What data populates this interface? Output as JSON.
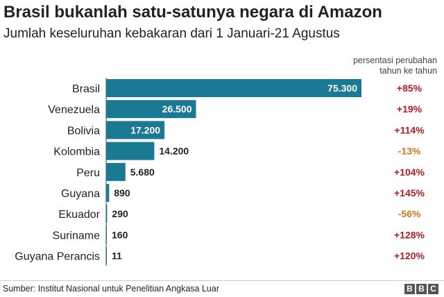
{
  "header": {
    "title": "Brasil bukanlah satu-satunya negara di Amazon",
    "subtitle": "Jumlah keseluruhan kebakaran dari 1 Januari-21 Agustus",
    "pct_header_line1": "persentasi perubahan",
    "pct_header_line2": "tahun ke tahun"
  },
  "chart_data": {
    "type": "bar",
    "orientation": "horizontal",
    "categories": [
      "Brasil",
      "Venezuela",
      "Bolivia",
      "Kolombia",
      "Peru",
      "Guyana",
      "Ekuador",
      "Suriname",
      "Guyana Perancis"
    ],
    "values": [
      75300,
      26500,
      17200,
      14200,
      5680,
      890,
      290,
      160,
      11
    ],
    "value_labels": [
      "75.300",
      "26.500",
      "17.200",
      "14.200",
      "5.680",
      "890",
      "290",
      "160",
      "11"
    ],
    "change_labels": [
      "+85%",
      "+19%",
      "+114%",
      "-13%",
      "+104%",
      "+145%",
      "-56%",
      "+128%",
      "+120%"
    ],
    "xlim": [
      0,
      75300
    ],
    "grid": false,
    "colors": {
      "bar": "#1a7a94",
      "increase": "#b01c20",
      "decrease": "#c87a1e",
      "axis": "#444444"
    }
  },
  "footer": {
    "source": "Sumber: Institut Nasional untuk Penelitian Angkasa Luar",
    "logo_letters": [
      "B",
      "B",
      "C"
    ]
  }
}
